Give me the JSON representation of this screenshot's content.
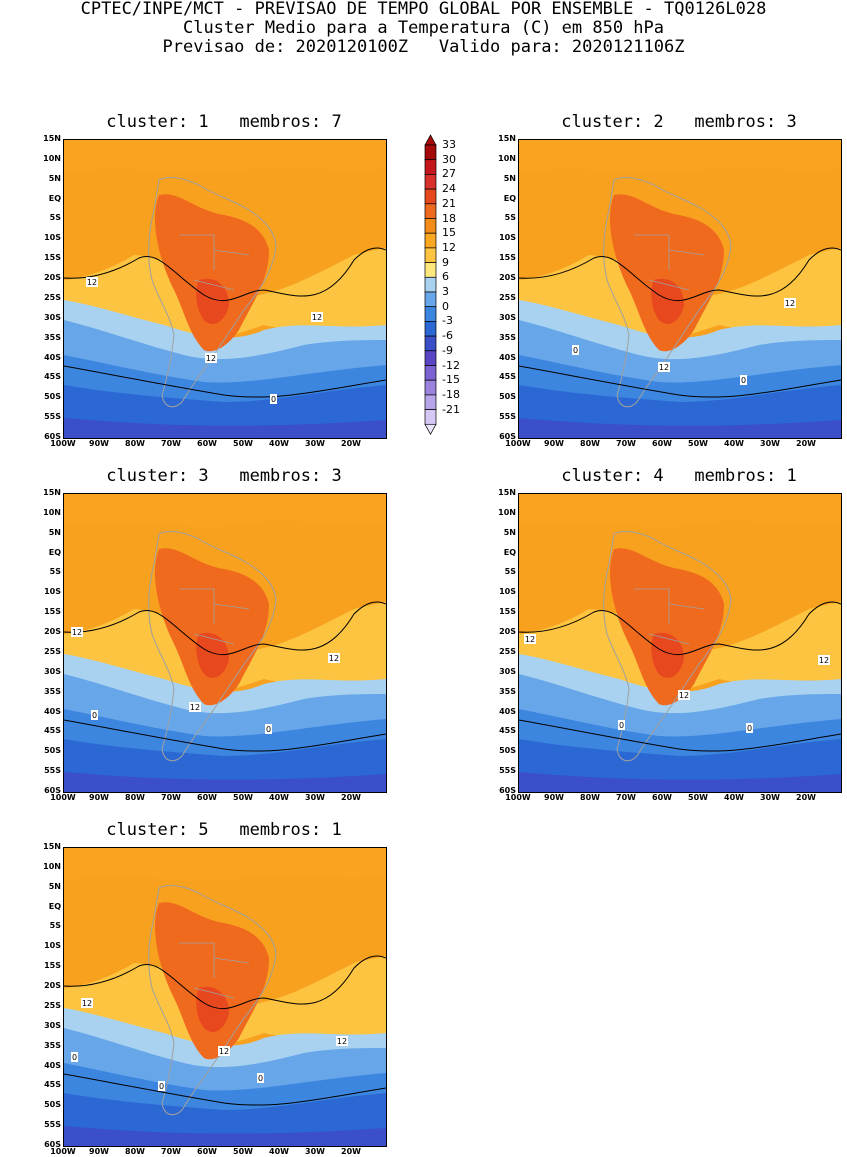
{
  "header": {
    "line1": "CPTEC/INPE/MCT - PREVISAO DE TEMPO GLOBAL POR ENSEMBLE - TQ0126L028",
    "line2": "Cluster Medio para a Temperatura (C) em 850 hPa",
    "line3": "Previsao de: 2020120100Z   Valido para: 2020121106Z"
  },
  "colorbar": {
    "levels": [
      "33",
      "30",
      "27",
      "24",
      "21",
      "18",
      "15",
      "12",
      "9",
      "6",
      "3",
      "0",
      "-3",
      "-6",
      "-9",
      "-12",
      "-15",
      "-18",
      "-21"
    ],
    "colors": [
      "#a50a0a",
      "#c4161c",
      "#d8302a",
      "#e8481e",
      "#ee6a1e",
      "#f48c1a",
      "#faa722",
      "#fcc440",
      "#fde87e",
      "#a8d2f0",
      "#68a6ea",
      "#3c86e0",
      "#2c68d4",
      "#3a4fc8",
      "#5a46c4",
      "#7c62d2",
      "#9a82de",
      "#b8a4ea",
      "#d6c8f4"
    ]
  },
  "axes": {
    "lat_labels": [
      "15N",
      "10N",
      "5N",
      "EQ",
      "5S",
      "10S",
      "15S",
      "20S",
      "25S",
      "30S",
      "35S",
      "40S",
      "45S",
      "50S",
      "55S",
      "60S"
    ],
    "lon_labels": [
      "100W",
      "90W",
      "80W",
      "70W",
      "60W",
      "50W",
      "40W",
      "30W",
      "20W"
    ]
  },
  "panels": [
    {
      "title": "cluster: 1   membros: 7",
      "contour_labels": [
        "12",
        "12",
        "12",
        "0"
      ]
    },
    {
      "title": "cluster: 2   membros: 3",
      "contour_labels": [
        "12",
        "12",
        "0",
        "0"
      ]
    },
    {
      "title": "cluster: 3   membros: 3",
      "contour_labels": [
        "12",
        "12",
        "12",
        "0",
        "0"
      ]
    },
    {
      "title": "cluster: 4   membros: 1",
      "contour_labels": [
        "12",
        "12",
        "12",
        "0",
        "0"
      ]
    },
    {
      "title": "cluster: 5   membros: 1",
      "contour_labels": [
        "12",
        "12",
        "12",
        "0",
        "0",
        "0"
      ]
    }
  ]
}
